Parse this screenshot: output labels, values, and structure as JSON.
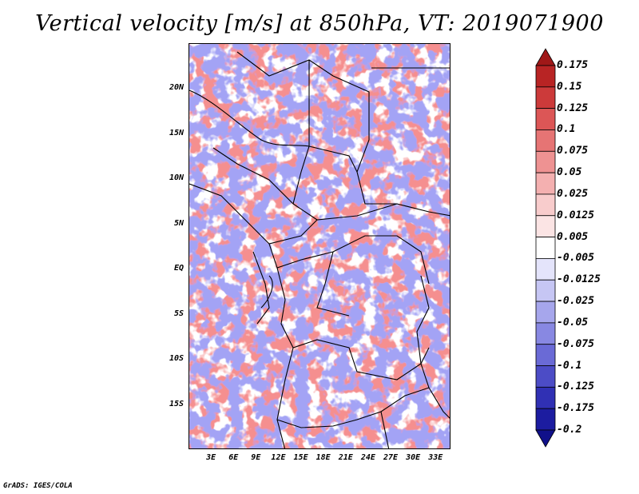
{
  "title": "Vertical velocity [m/s] at 850hPa, VT: 2019071900",
  "credit": "GrADS: IGES/COLA",
  "lat_ticks": [
    "20N",
    "15N",
    "10N",
    "5N",
    "EQ",
    "5S",
    "10S",
    "15S"
  ],
  "lat_values": [
    20,
    15,
    10,
    5,
    0,
    -5,
    -10,
    -15
  ],
  "lon_ticks": [
    "3E",
    "6E",
    "9E",
    "12E",
    "15E",
    "18E",
    "21E",
    "24E",
    "27E",
    "30E",
    "33E"
  ],
  "lon_values": [
    3,
    6,
    9,
    12,
    15,
    18,
    21,
    24,
    27,
    30,
    33
  ],
  "extent": {
    "lon_min": 0,
    "lon_max": 35,
    "lat_min": -20,
    "lat_max": 25
  },
  "colorbar": {
    "labels": [
      "0.175",
      "0.15",
      "0.125",
      "0.1",
      "0.075",
      "0.05",
      "0.025",
      "0.0125",
      "0.005",
      "-0.005",
      "-0.0125",
      "-0.025",
      "-0.05",
      "-0.075",
      "-0.1",
      "-0.125",
      "-0.175",
      "-0.2"
    ],
    "colors": [
      "#a01818",
      "#b82424",
      "#cc3a3a",
      "#dc5656",
      "#e67474",
      "#ee9292",
      "#f4b0b0",
      "#f8cccc",
      "#fbe4e4",
      "#ffffff",
      "#e4e4fb",
      "#c6c6f4",
      "#a6a6ec",
      "#8888e2",
      "#6a6ad6",
      "#4c4cc6",
      "#3030b4",
      "#1c1ca0",
      "#10108a"
    ]
  }
}
